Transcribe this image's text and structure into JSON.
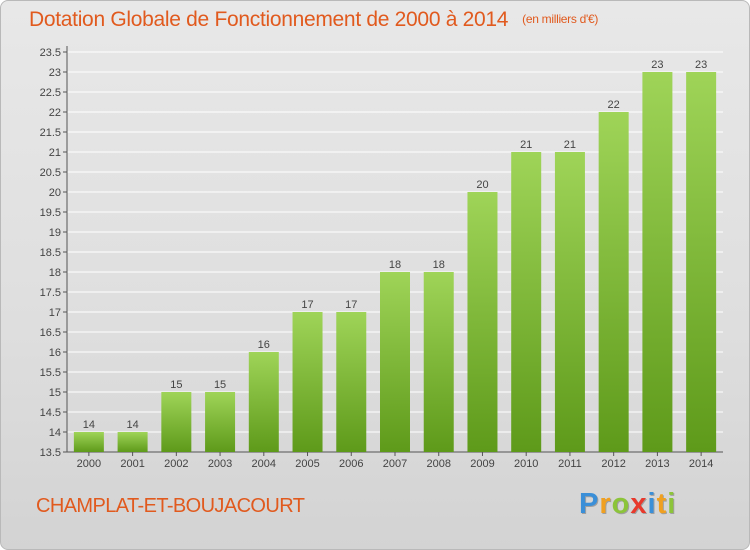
{
  "header": {
    "title": "Dotation Globale de Fonctionnement de 2000 à 2014",
    "subtitle": "(en milliers d'€)"
  },
  "footer": {
    "commune": "CHAMPLAT-ET-BOUJACOURT",
    "logo_letters": [
      "P",
      "r",
      "o",
      "x",
      "i",
      "t",
      "i"
    ],
    "logo_colors": [
      "#3a8fd8",
      "#f0a020",
      "#8cc43a",
      "#e8392c",
      "#3a8fd8",
      "#f0a020",
      "#8cc43a"
    ]
  },
  "colors": {
    "bar_top": "#9fd458",
    "bar_bottom": "#5e9a1a",
    "accent": "#e15a1e"
  },
  "chart_data": {
    "type": "bar",
    "title": "Dotation Globale de Fonctionnement de 2000 à 2014",
    "subtitle": "(en milliers d'€)",
    "categories": [
      "2000",
      "2001",
      "2002",
      "2003",
      "2004",
      "2005",
      "2006",
      "2007",
      "2008",
      "2009",
      "2010",
      "2011",
      "2012",
      "2013",
      "2014"
    ],
    "values": [
      14,
      14,
      15,
      15,
      16,
      17,
      17,
      18,
      18,
      20,
      21,
      21,
      22,
      23,
      23
    ],
    "yticks": [
      "13.5",
      "14",
      "14.5",
      "15",
      "15.5",
      "16",
      "16.5",
      "17",
      "17.5",
      "18",
      "18.5",
      "19",
      "19.5",
      "20",
      "20.5",
      "21",
      "21.5",
      "22",
      "22.5",
      "23",
      "23.5"
    ],
    "ylim": [
      13.5,
      23.5
    ],
    "xlabel": "",
    "ylabel": "",
    "grid": true
  }
}
